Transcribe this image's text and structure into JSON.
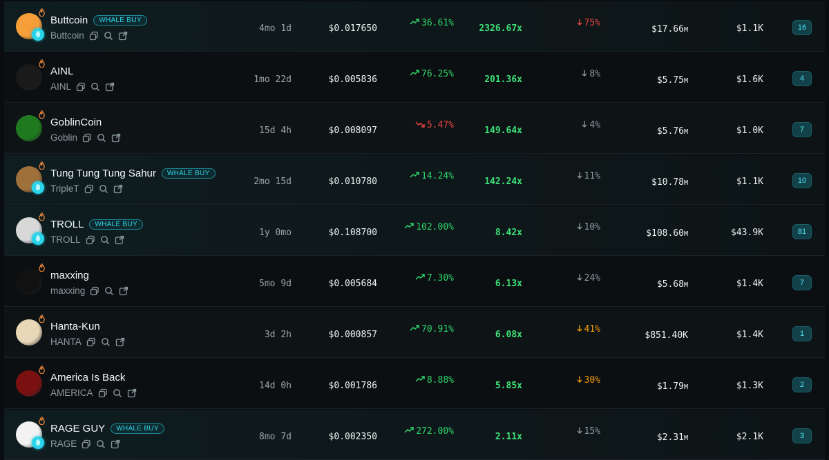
{
  "rows": [
    {
      "name": "Buttcoin",
      "ticker": "Buttcoin",
      "whale": true,
      "badge": "WHALE BUY",
      "age": "4mo 1d",
      "price": "$0.017650",
      "change": "36.61%",
      "change_dir": "up",
      "multiplier": "2326.67x",
      "ath_drop": "75%",
      "ath_color": "red",
      "mcap": "$17.66",
      "mcap_unit": "M",
      "liquidity": "$1.1K",
      "count": "16",
      "avatar_color": "#f59e3a"
    },
    {
      "name": "AINL",
      "ticker": "AINL",
      "whale": false,
      "badge": "",
      "age": "1mo 22d",
      "price": "$0.005836",
      "change": "76.25%",
      "change_dir": "up",
      "multiplier": "201.36x",
      "ath_drop": "8%",
      "ath_color": "grey",
      "mcap": "$5.75",
      "mcap_unit": "M",
      "liquidity": "$1.6K",
      "count": "4",
      "avatar_color": "#1a1a1a"
    },
    {
      "name": "GoblinCoin",
      "ticker": "Goblin",
      "whale": false,
      "badge": "",
      "age": "15d 4h",
      "price": "$0.008097",
      "change": "5.47%",
      "change_dir": "down",
      "multiplier": "149.64x",
      "ath_drop": "4%",
      "ath_color": "grey",
      "mcap": "$5.76",
      "mcap_unit": "M",
      "liquidity": "$1.0K",
      "count": "7",
      "avatar_color": "#1f7a1f"
    },
    {
      "name": "Tung Tung Tung Sahur",
      "ticker": "TripleT",
      "whale": true,
      "badge": "WHALE BUY",
      "age": "2mo 15d",
      "price": "$0.010780",
      "change": "14.24%",
      "change_dir": "up",
      "multiplier": "142.24x",
      "ath_drop": "11%",
      "ath_color": "grey",
      "mcap": "$10.78",
      "mcap_unit": "M",
      "liquidity": "$1.1K",
      "count": "10",
      "avatar_color": "#a0703a"
    },
    {
      "name": "TROLL",
      "ticker": "TROLL",
      "whale": true,
      "badge": "WHALE BUY",
      "age": "1y 0mo",
      "price": "$0.108700",
      "change": "102.00%",
      "change_dir": "up",
      "multiplier": "8.42x",
      "ath_drop": "10%",
      "ath_color": "grey",
      "mcap": "$108.60",
      "mcap_unit": "M",
      "liquidity": "$43.9K",
      "count": "81",
      "avatar_color": "#d8d8d8"
    },
    {
      "name": "maxxing",
      "ticker": "maxxing",
      "whale": false,
      "badge": "",
      "age": "5mo 9d",
      "price": "$0.005684",
      "change": "7.30%",
      "change_dir": "up",
      "multiplier": "6.13x",
      "ath_drop": "24%",
      "ath_color": "grey",
      "mcap": "$5.68",
      "mcap_unit": "M",
      "liquidity": "$1.4K",
      "count": "7",
      "avatar_color": "#111111"
    },
    {
      "name": "Hanta-Kun",
      "ticker": "HANTA",
      "whale": false,
      "badge": "",
      "age": "3d 2h",
      "price": "$0.000857",
      "change": "70.91%",
      "change_dir": "up",
      "multiplier": "6.08x",
      "ath_drop": "41%",
      "ath_color": "amber",
      "mcap": "$851.40K",
      "mcap_unit": "",
      "liquidity": "$1.4K",
      "count": "1",
      "avatar_color": "#e8d8b8"
    },
    {
      "name": "America Is Back",
      "ticker": "AMERICA",
      "whale": false,
      "badge": "",
      "age": "14d 0h",
      "price": "$0.001786",
      "change": "8.88%",
      "change_dir": "up",
      "multiplier": "5.85x",
      "ath_drop": "30%",
      "ath_color": "amber",
      "mcap": "$1.79",
      "mcap_unit": "M",
      "liquidity": "$1.3K",
      "count": "2",
      "avatar_color": "#7a1010"
    },
    {
      "name": "RAGE GUY",
      "ticker": "RAGE",
      "whale": true,
      "badge": "WHALE BUY",
      "age": "8mo 7d",
      "price": "$0.002350",
      "change": "272.00%",
      "change_dir": "up",
      "multiplier": "2.11x",
      "ath_drop": "15%",
      "ath_color": "grey",
      "mcap": "$2.31",
      "mcap_unit": "M",
      "liquidity": "$2.1K",
      "count": "3",
      "avatar_color": "#f2f2f2"
    }
  ]
}
